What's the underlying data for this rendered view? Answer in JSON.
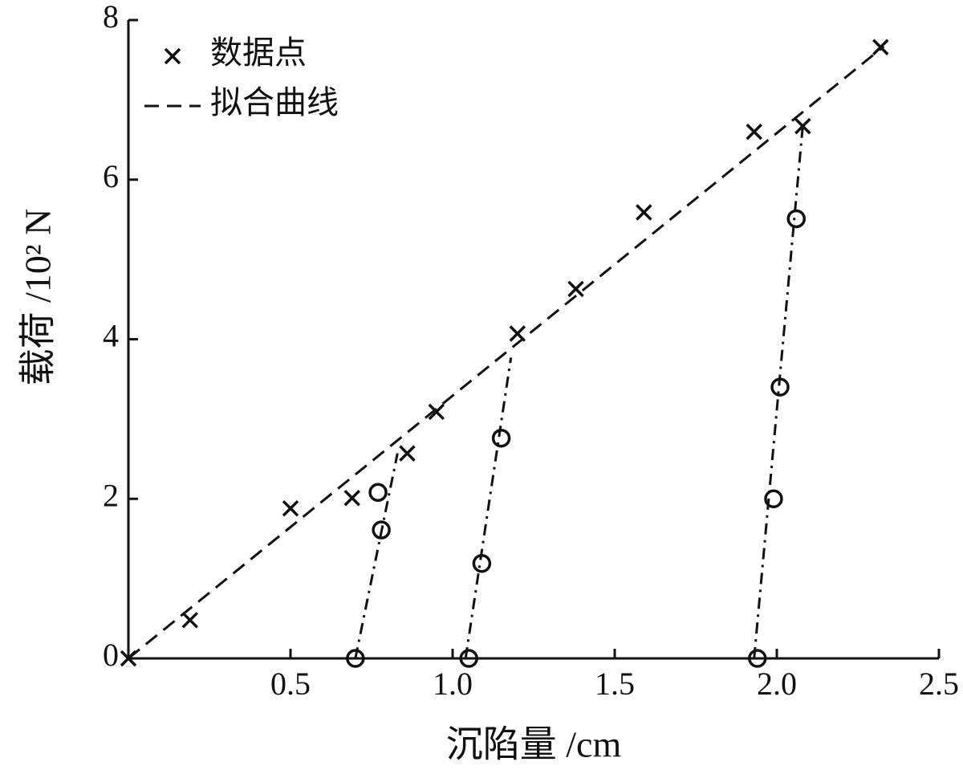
{
  "chart_data": {
    "type": "scatter",
    "xlabel": "沉陷量 /cm",
    "ylabel": "载荷 /10² N",
    "xlim": [
      0,
      2.5
    ],
    "ylim": [
      0,
      8
    ],
    "xticks": [
      0.5,
      {
        "value": 1,
        "label": "1.0"
      },
      1.5,
      {
        "value": 2,
        "label": "2.0"
      },
      2.5
    ],
    "yticks": [
      0,
      2,
      4,
      6,
      8
    ],
    "legend": "upper-left",
    "series": [
      {
        "name": "数据点",
        "color": "#111111",
        "marker": "cross",
        "line": "none",
        "x": [
          0,
          0.19,
          0.5,
          0.69,
          0.86,
          0.95,
          1.2,
          1.38,
          1.59,
          1.93,
          2.08,
          2.32
        ],
        "values": [
          0,
          0.48,
          1.88,
          2.01,
          2.57,
          3.09,
          4.07,
          4.63,
          5.59,
          6.6,
          6.67,
          7.66
        ]
      },
      {
        "name": "拟合曲线",
        "color": "#111111",
        "marker": "none",
        "line": "dashed",
        "x": [
          0,
          2.33
        ],
        "values": [
          0,
          7.67
        ]
      },
      {
        "color": "#111111",
        "marker": "circle",
        "line": "none",
        "x": [
          0.7,
          0.78,
          0.77
        ],
        "values": [
          0,
          1.61,
          2.08
        ]
      },
      {
        "color": "#111111",
        "marker": "none",
        "line": "dashdot",
        "x": [
          0.7,
          0.83
        ],
        "values": [
          0,
          2.57
        ]
      },
      {
        "color": "#111111",
        "marker": "circle",
        "line": "none",
        "x": [
          1.05,
          1.09,
          1.15
        ],
        "values": [
          0,
          1.19,
          2.76
        ]
      },
      {
        "color": "#111111",
        "marker": "none",
        "line": "dashdot",
        "x": [
          1.04,
          1.18
        ],
        "values": [
          0,
          3.77
        ]
      },
      {
        "color": "#111111",
        "marker": "circle",
        "line": "none",
        "x": [
          1.94,
          1.99,
          2.01,
          2.06
        ],
        "values": [
          0,
          2.0,
          3.4,
          5.51
        ]
      },
      {
        "color": "#111111",
        "marker": "none",
        "line": "dashdot",
        "x": [
          1.93,
          2.08
        ],
        "values": [
          0,
          6.67
        ]
      }
    ]
  }
}
